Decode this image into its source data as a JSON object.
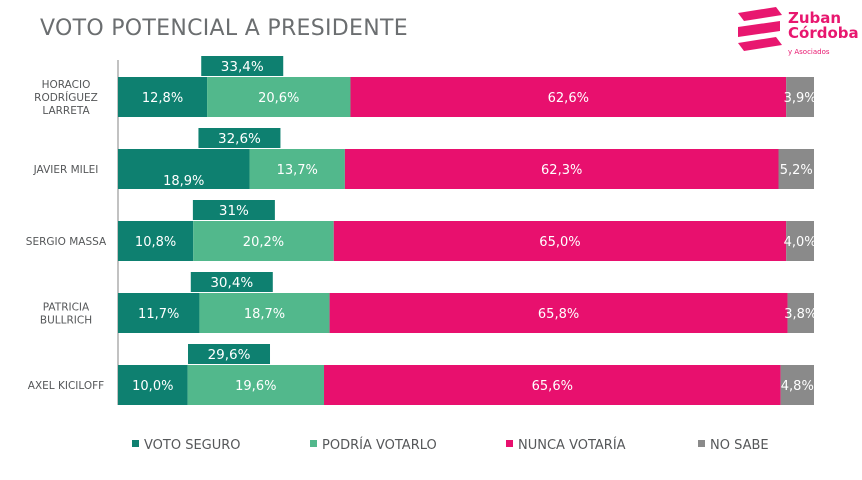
{
  "title": "VOTO POTENCIAL A PRESIDENTE",
  "logo": {
    "line1": "Zuban",
    "line2": "Córdoba",
    "sub": "y Asociados"
  },
  "colors": {
    "seguro": "#0e8070",
    "podria": "#52b88c",
    "nunca": "#e8106e",
    "nosabe": "#8a8a8a",
    "text": "#555759"
  },
  "chart_data": {
    "type": "bar",
    "orientation": "horizontal",
    "stacked": true,
    "categories": [
      [
        "HORACIO",
        "RODRÍGUEZ",
        "LARRETA"
      ],
      [
        "JAVIER MILEI"
      ],
      [
        "SERGIO MASSA"
      ],
      [
        "PATRICIA",
        "BULLRICH"
      ],
      [
        "AXEL KICILOFF"
      ]
    ],
    "series": [
      {
        "name": "VOTO SEGURO",
        "values": [
          12.8,
          18.9,
          10.8,
          11.7,
          10.0
        ],
        "labels": [
          "12,8%",
          "18,9%",
          "10,8%",
          "11,7%",
          "10,0%"
        ]
      },
      {
        "name": "PODRÍA VOTARLO",
        "values": [
          20.6,
          13.7,
          20.2,
          18.7,
          19.6
        ],
        "labels": [
          "20,6%",
          "13,7%",
          "20,2%",
          "18,7%",
          "19,6%"
        ]
      },
      {
        "name": "NUNCA VOTARÍA",
        "values": [
          62.6,
          62.3,
          65.0,
          65.8,
          65.6
        ],
        "labels": [
          "62,6%",
          "62,3%",
          "65,0%",
          "65,8%",
          "65,6%"
        ]
      },
      {
        "name": "NO SABE",
        "values": [
          3.9,
          5.2,
          4.0,
          3.8,
          4.8
        ],
        "labels": [
          "3,9%",
          "5,2%",
          "4,0%",
          "3,8%",
          "4,8%"
        ]
      }
    ],
    "totals": {
      "values": [
        33.4,
        32.6,
        31,
        30.4,
        29.6
      ],
      "labels": [
        "33,4%",
        "32,6%",
        "31%",
        "30,4%",
        "29,6%"
      ]
    },
    "xlim": [
      0,
      100
    ],
    "legend_position": "bottom"
  }
}
